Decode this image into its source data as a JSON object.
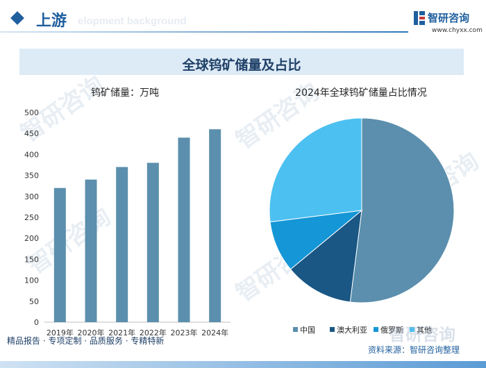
{
  "header": {
    "section_title": "上游",
    "ghost_text": "elopment background",
    "logo_name": "智研咨询",
    "logo_url": "www.chyxx.com"
  },
  "main_title": "全球钨矿储量及占比",
  "watermark_text": "智研咨询",
  "colors": {
    "bar": "#5b8fad",
    "accent": "#1f5f9e",
    "title_band": "#ddebf7"
  },
  "chart_data": [
    {
      "type": "bar",
      "title": "钨矿储量：万吨",
      "categories": [
        "2019年",
        "2020年",
        "2021年",
        "2022年",
        "2023年",
        "2024年"
      ],
      "values": [
        320,
        340,
        370,
        380,
        440,
        460
      ],
      "yticks": [
        "0",
        "50",
        "100",
        "150",
        "200",
        "250",
        "300",
        "350",
        "400",
        "450",
        "500"
      ],
      "ylim": [
        0,
        500
      ],
      "grid": false
    },
    {
      "type": "pie",
      "title": "2024年全球钨矿储量占比情况",
      "labels": [
        "中国",
        "澳大利亚",
        "俄罗斯",
        "其他"
      ],
      "values": [
        52,
        12,
        9,
        27
      ],
      "colors": [
        "#5b8fad",
        "#1a5784",
        "#1596d6",
        "#4cc0f0"
      ],
      "legend": "bottom"
    }
  ],
  "footer": {
    "left_text": "精品报告 · 专项定制 · 品质服务 · 专精特新",
    "source": "资料来源：智研咨询整理",
    "brand_big": "智研咨询"
  }
}
